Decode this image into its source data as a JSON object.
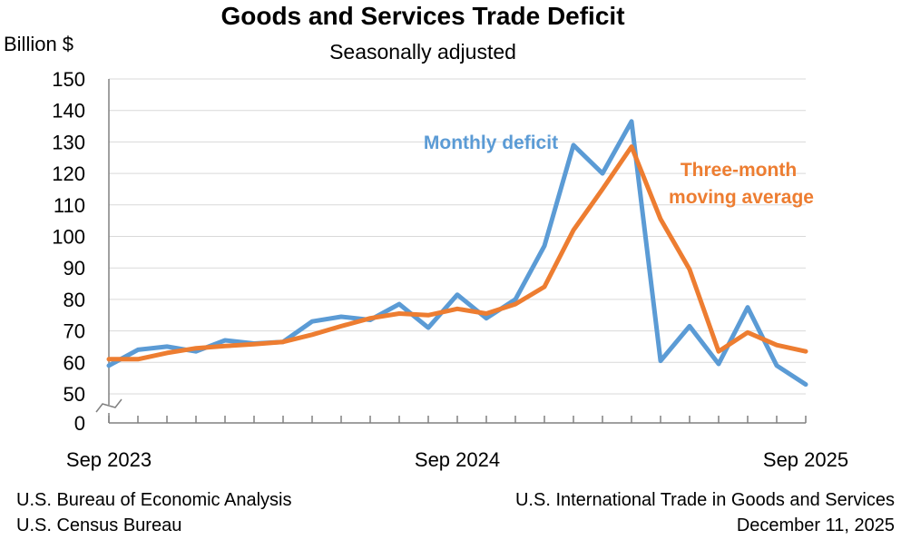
{
  "chart_data": {
    "type": "line",
    "title": "Goods and Services Trade Deficit",
    "subtitle": "Seasonally adjusted",
    "ylabel": "Billion $",
    "ylim": [
      50,
      150
    ],
    "y_ticks": [
      "0",
      "50",
      "60",
      "70",
      "80",
      "90",
      "100",
      "110",
      "120",
      "130",
      "140",
      "150"
    ],
    "y_axis_break": true,
    "x_tick_labels": [
      "Sep 2023",
      "Sep 2024",
      "Sep 2025"
    ],
    "x": [
      "Sep 2023",
      "Oct 2023",
      "Nov 2023",
      "Dec 2023",
      "Jan 2024",
      "Feb 2024",
      "Mar 2024",
      "Apr 2024",
      "May 2024",
      "Jun 2024",
      "Jul 2024",
      "Aug 2024",
      "Sep 2024",
      "Oct 2024",
      "Nov 2024",
      "Dec 2024",
      "Jan 2025",
      "Feb 2025",
      "Mar 2025",
      "Apr 2025",
      "May 2025",
      "Jun 2025",
      "Jul 2025",
      "Aug 2025",
      "Sep 2025"
    ],
    "grid": true,
    "series": [
      {
        "name": "Monthly deficit",
        "color": "#5B9BD5",
        "values": [
          59,
          64,
          65,
          63.5,
          67,
          66,
          66.5,
          73,
          74.5,
          73.5,
          78.5,
          71,
          81.5,
          74,
          80,
          97,
          129,
          120,
          136.5,
          60.5,
          71.5,
          59.5,
          77.5,
          59,
          53
        ]
      },
      {
        "name": "Three-month moving average",
        "color": "#ED7D31",
        "values": [
          61,
          61,
          63,
          64.5,
          65.2,
          65.8,
          66.5,
          68.8,
          71.5,
          74,
          75.5,
          75,
          77,
          75.5,
          78.5,
          84,
          102,
          115,
          128.5,
          105.5,
          89.5,
          63.5,
          69.5,
          65.5,
          63.5
        ]
      }
    ]
  },
  "labels": {
    "monthly": "Monthly deficit",
    "avg_line1": "Three-month",
    "avg_line2": "moving average"
  },
  "sources": {
    "left_line1": "U.S. Bureau of Economic Analysis",
    "left_line2": "U.S. Census Bureau",
    "right_line1": "U.S. International Trade in Goods and Services",
    "right_line2": "December 11, 2025"
  }
}
